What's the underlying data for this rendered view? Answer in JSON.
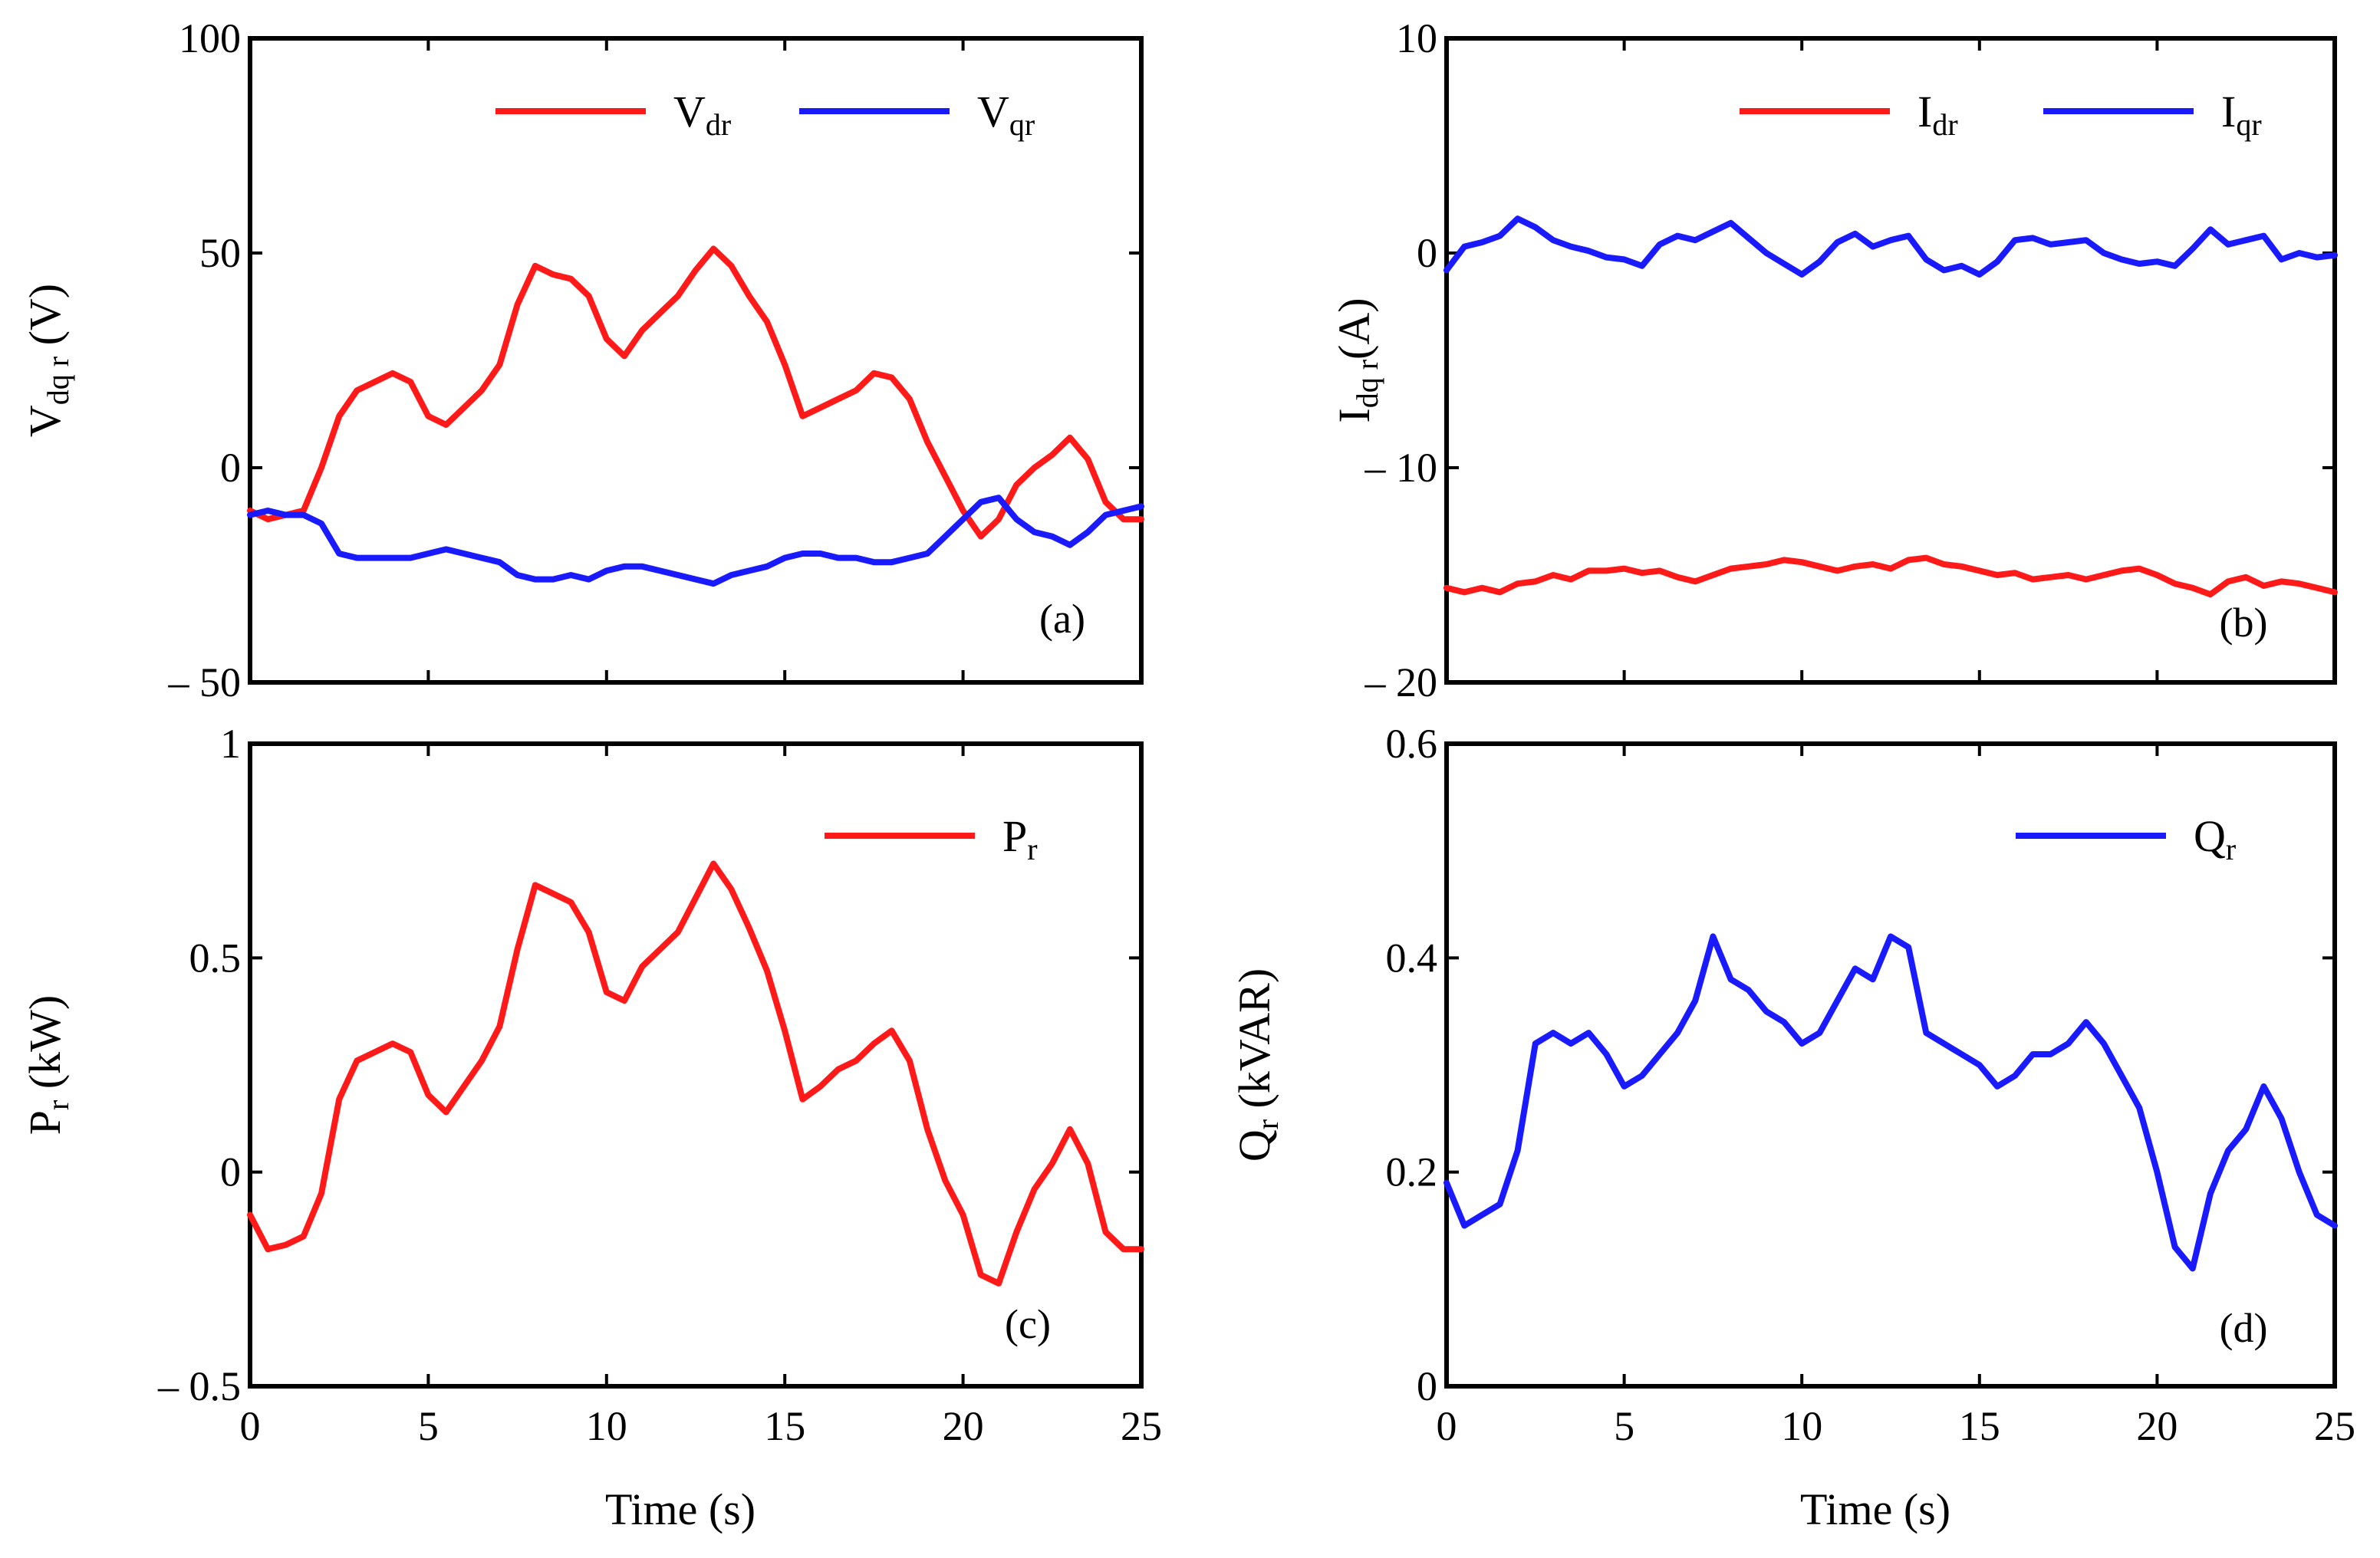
{
  "colors": {
    "red": "#ff1a1a",
    "blue": "#1a1aff",
    "axis": "#000000"
  },
  "chart_data": [
    {
      "panel": "(a)",
      "type": "line",
      "title": "",
      "xlabel": "",
      "ylabel": {
        "main": "V",
        "sub": "dq r",
        "unit": " (V)"
      },
      "xlim": [
        0,
        25
      ],
      "ylim": [
        -50,
        100
      ],
      "xticks": [],
      "yticks": [
        "100",
        "50",
        "0",
        "– 50"
      ],
      "ytick_values": [
        100,
        50,
        0,
        -50
      ],
      "legend": "top-right",
      "series": [
        {
          "name": "V",
          "sub": "dr",
          "color": "#ff1a1a",
          "x": [
            0,
            0.5,
            1,
            1.5,
            2,
            2.5,
            3,
            3.5,
            4,
            4.5,
            5,
            5.5,
            6,
            6.5,
            7,
            7.5,
            8,
            8.5,
            9,
            9.5,
            10,
            10.5,
            11,
            11.5,
            12,
            12.5,
            13,
            13.5,
            14,
            14.5,
            15,
            15.5,
            16,
            16.5,
            17,
            17.5,
            18,
            18.5,
            19,
            19.5,
            20,
            20.5,
            21,
            21.5,
            22,
            22.5,
            23,
            23.5,
            24,
            24.5,
            25
          ],
          "y": [
            -10,
            -12,
            -11,
            -10,
            0,
            12,
            18,
            20,
            22,
            20,
            12,
            10,
            14,
            18,
            24,
            38,
            47,
            45,
            44,
            40,
            30,
            26,
            32,
            36,
            40,
            46,
            51,
            47,
            40,
            34,
            24,
            12,
            14,
            16,
            18,
            22,
            21,
            16,
            6,
            -2,
            -10,
            -16,
            -12,
            -4,
            0,
            3,
            7,
            2,
            -8,
            -12,
            -12
          ]
        },
        {
          "name": "V",
          "sub": "qr",
          "color": "#1a1aff",
          "x": [
            0,
            0.5,
            1,
            1.5,
            2,
            2.5,
            3,
            3.5,
            4,
            4.5,
            5,
            5.5,
            6,
            6.5,
            7,
            7.5,
            8,
            8.5,
            9,
            9.5,
            10,
            10.5,
            11,
            11.5,
            12,
            12.5,
            13,
            13.5,
            14,
            14.5,
            15,
            15.5,
            16,
            16.5,
            17,
            17.5,
            18,
            18.5,
            19,
            19.5,
            20,
            20.5,
            21,
            21.5,
            22,
            22.5,
            23,
            23.5,
            24,
            24.5,
            25
          ],
          "y": [
            -11,
            -10,
            -11,
            -11,
            -13,
            -20,
            -21,
            -21,
            -21,
            -21,
            -20,
            -19,
            -20,
            -21,
            -22,
            -25,
            -26,
            -26,
            -25,
            -26,
            -24,
            -23,
            -23,
            -24,
            -25,
            -26,
            -27,
            -25,
            -24,
            -23,
            -21,
            -20,
            -20,
            -21,
            -21,
            -22,
            -22,
            -21,
            -20,
            -16,
            -12,
            -8,
            -7,
            -12,
            -15,
            -16,
            -18,
            -15,
            -11,
            -10,
            -9
          ]
        }
      ]
    },
    {
      "panel": "(b)",
      "type": "line",
      "title": "",
      "xlabel": "",
      "ylabel": {
        "main": "I",
        "sub": "dq r",
        "unit": "(A)"
      },
      "xlim": [
        0,
        25
      ],
      "ylim": [
        -20,
        10
      ],
      "xticks": [],
      "yticks": [
        "10",
        "0",
        "– 10",
        "– 20"
      ],
      "ytick_values": [
        10,
        0,
        -10,
        -20
      ],
      "legend": "top-right",
      "series": [
        {
          "name": "I",
          "sub": "dr",
          "color": "#ff1a1a",
          "x": [
            0,
            0.5,
            1,
            1.5,
            2,
            2.5,
            3,
            3.5,
            4,
            4.5,
            5,
            5.5,
            6,
            6.5,
            7,
            7.5,
            8,
            8.5,
            9,
            9.5,
            10,
            10.5,
            11,
            11.5,
            12,
            12.5,
            13,
            13.5,
            14,
            14.5,
            15,
            15.5,
            16,
            16.5,
            17,
            17.5,
            18,
            18.5,
            19,
            19.5,
            20,
            20.5,
            21,
            21.5,
            22,
            22.5,
            23,
            23.5,
            24,
            24.5,
            25
          ],
          "y": [
            -15.6,
            -15.8,
            -15.6,
            -15.8,
            -15.4,
            -15.3,
            -15.0,
            -15.2,
            -14.8,
            -14.8,
            -14.7,
            -14.9,
            -14.8,
            -15.1,
            -15.3,
            -15.0,
            -14.7,
            -14.6,
            -14.5,
            -14.3,
            -14.4,
            -14.6,
            -14.8,
            -14.6,
            -14.5,
            -14.7,
            -14.3,
            -14.2,
            -14.5,
            -14.6,
            -14.8,
            -15.0,
            -14.9,
            -15.2,
            -15.1,
            -15.0,
            -15.2,
            -15.0,
            -14.8,
            -14.7,
            -15.0,
            -15.4,
            -15.6,
            -15.9,
            -15.3,
            -15.1,
            -15.5,
            -15.3,
            -15.4,
            -15.6,
            -15.8
          ]
        },
        {
          "name": "I",
          "sub": "qr",
          "color": "#1a1aff",
          "x": [
            0,
            0.5,
            1,
            1.5,
            2,
            2.5,
            3,
            3.5,
            4,
            4.5,
            5,
            5.5,
            6,
            6.5,
            7,
            7.5,
            8,
            8.5,
            9,
            9.5,
            10,
            10.5,
            11,
            11.5,
            12,
            12.5,
            13,
            13.5,
            14,
            14.5,
            15,
            15.5,
            16,
            16.5,
            17,
            17.5,
            18,
            18.5,
            19,
            19.5,
            20,
            20.5,
            21,
            21.5,
            22,
            22.5,
            23,
            23.5,
            24,
            24.5,
            25
          ],
          "y": [
            -0.8,
            0.3,
            0.5,
            0.8,
            1.6,
            1.2,
            0.6,
            0.3,
            0.1,
            -0.2,
            -0.3,
            -0.6,
            0.4,
            0.8,
            0.6,
            1.0,
            1.4,
            0.7,
            0.0,
            -0.5,
            -1.0,
            -0.4,
            0.5,
            0.9,
            0.3,
            0.6,
            0.8,
            -0.3,
            -0.8,
            -0.6,
            -1.0,
            -0.4,
            0.6,
            0.7,
            0.4,
            0.5,
            0.6,
            0.0,
            -0.3,
            -0.5,
            -0.4,
            -0.6,
            0.2,
            1.1,
            0.4,
            0.6,
            0.8,
            -0.3,
            0.0,
            -0.2,
            -0.1
          ]
        }
      ]
    },
    {
      "panel": "(c)",
      "type": "line",
      "title": "",
      "xlabel": "Time (s)",
      "ylabel": {
        "main": "P",
        "sub": "r",
        "unit": " (kW)"
      },
      "xlim": [
        0,
        25
      ],
      "ylim": [
        -0.5,
        1
      ],
      "xticks": [
        "0",
        "5",
        "10",
        "15",
        "20",
        "25"
      ],
      "xtick_values": [
        0,
        5,
        10,
        15,
        20,
        25
      ],
      "yticks": [
        "1",
        "0.5",
        "0",
        "– 0.5"
      ],
      "ytick_values": [
        1,
        0.5,
        0,
        -0.5
      ],
      "legend": "top-right",
      "series": [
        {
          "name": "P",
          "sub": "r",
          "color": "#ff1a1a",
          "x": [
            0,
            0.5,
            1,
            1.5,
            2,
            2.5,
            3,
            3.5,
            4,
            4.5,
            5,
            5.5,
            6,
            6.5,
            7,
            7.5,
            8,
            8.5,
            9,
            9.5,
            10,
            10.5,
            11,
            11.5,
            12,
            12.5,
            13,
            13.5,
            14,
            14.5,
            15,
            15.5,
            16,
            16.5,
            17,
            17.5,
            18,
            18.5,
            19,
            19.5,
            20,
            20.5,
            21,
            21.5,
            22,
            22.5,
            23,
            23.5,
            24,
            24.5,
            25
          ],
          "y": [
            -0.1,
            -0.18,
            -0.17,
            -0.15,
            -0.05,
            0.17,
            0.26,
            0.28,
            0.3,
            0.28,
            0.18,
            0.14,
            0.2,
            0.26,
            0.34,
            0.52,
            0.67,
            0.65,
            0.63,
            0.56,
            0.42,
            0.4,
            0.48,
            0.52,
            0.56,
            0.64,
            0.72,
            0.66,
            0.57,
            0.47,
            0.33,
            0.17,
            0.2,
            0.24,
            0.26,
            0.3,
            0.33,
            0.26,
            0.1,
            -0.02,
            -0.1,
            -0.24,
            -0.26,
            -0.14,
            -0.04,
            0.02,
            0.1,
            0.02,
            -0.14,
            -0.18,
            -0.18
          ]
        }
      ]
    },
    {
      "panel": "(d)",
      "type": "line",
      "title": "",
      "xlabel": "Time (s)",
      "ylabel": {
        "main": "Q",
        "sub": "r",
        "unit": " (kVAR)"
      },
      "xlim": [
        0,
        25
      ],
      "ylim": [
        0,
        0.6
      ],
      "xticks": [
        "0",
        "5",
        "10",
        "15",
        "20",
        "25"
      ],
      "xtick_values": [
        0,
        5,
        10,
        15,
        20,
        25
      ],
      "yticks": [
        "0.6",
        "0.4",
        "0.2",
        "0"
      ],
      "ytick_values": [
        0.6,
        0.4,
        0.2,
        0
      ],
      "legend": "top-right",
      "series": [
        {
          "name": "Q",
          "sub": "r",
          "color": "#1a1aff",
          "x": [
            0,
            0.5,
            1,
            1.5,
            2,
            2.5,
            3,
            3.5,
            4,
            4.5,
            5,
            5.5,
            6,
            6.5,
            7,
            7.5,
            8,
            8.5,
            9,
            9.5,
            10,
            10.5,
            11,
            11.5,
            12,
            12.5,
            13,
            13.5,
            14,
            14.5,
            15,
            15.5,
            16,
            16.5,
            17,
            17.5,
            18,
            18.5,
            19,
            19.5,
            20,
            20.5,
            21,
            21.5,
            22,
            22.5,
            23,
            23.5,
            24,
            24.5,
            25
          ],
          "y": [
            0.19,
            0.15,
            0.16,
            0.17,
            0.22,
            0.32,
            0.33,
            0.32,
            0.33,
            0.31,
            0.28,
            0.29,
            0.31,
            0.33,
            0.36,
            0.42,
            0.38,
            0.37,
            0.35,
            0.34,
            0.32,
            0.33,
            0.36,
            0.39,
            0.38,
            0.42,
            0.41,
            0.33,
            0.32,
            0.31,
            0.3,
            0.28,
            0.29,
            0.31,
            0.31,
            0.32,
            0.34,
            0.32,
            0.29,
            0.26,
            0.2,
            0.13,
            0.11,
            0.18,
            0.22,
            0.24,
            0.28,
            0.25,
            0.2,
            0.16,
            0.15
          ]
        }
      ]
    }
  ]
}
